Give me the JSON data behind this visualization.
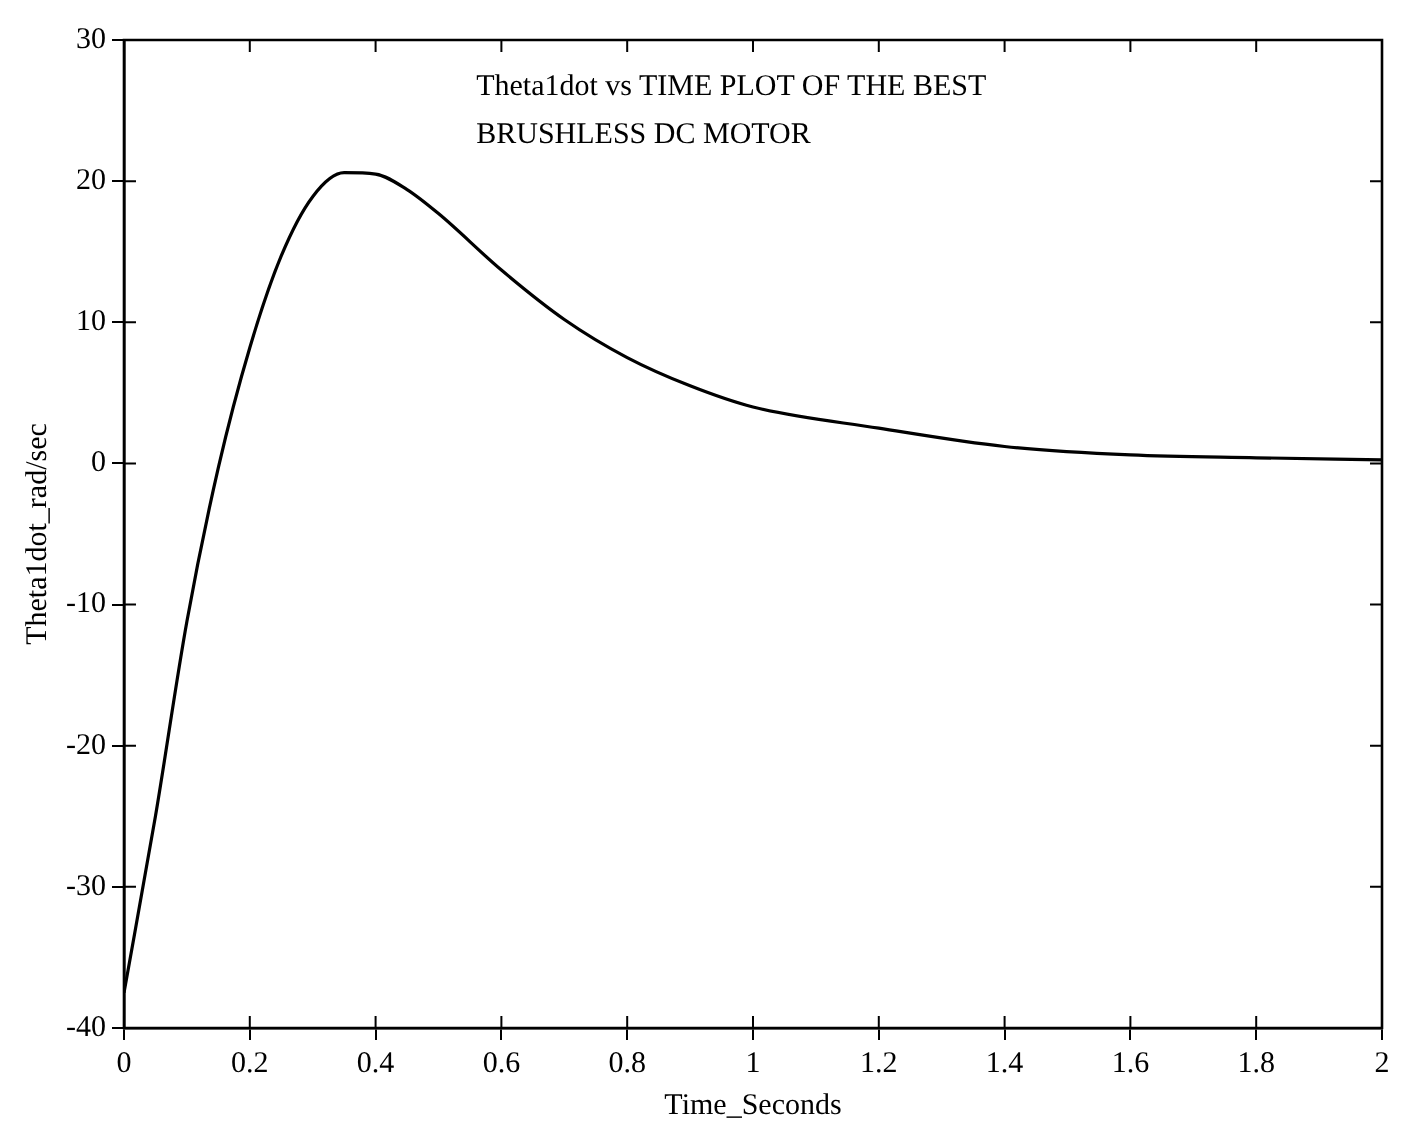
{
  "chart_data": {
    "type": "line",
    "title": "Theta1dot vs TIME PLOT OF THE BEST",
    "subtitle": "BRUSHLESS DC MOTOR",
    "xlabel": "Time_Seconds",
    "ylabel": "Theta1dot_rad/sec",
    "x": [
      0,
      0.05,
      0.1,
      0.15,
      0.2,
      0.25,
      0.3,
      0.35,
      0.4,
      0.45,
      0.5,
      0.6,
      0.7,
      0.8,
      0.9,
      1,
      1.2,
      1.4,
      1.6,
      1.8,
      2
    ],
    "series": [
      {
        "color": "#000000",
        "values": [
          -37.5,
          -25,
          -11.2,
          -0.3,
          8.2,
          14.7,
          18.9,
          20.6,
          20.5,
          19.4,
          17.7,
          13.7,
          10.2,
          7.5,
          5.5,
          4.0,
          2.5,
          1.2,
          0.6,
          0.4,
          0.25
        ]
      }
    ],
    "xlim": [
      0,
      2
    ],
    "xticks": [
      0,
      0.2,
      0.4,
      0.6,
      0.8,
      1,
      1.2,
      1.4,
      1.6,
      1.8,
      2
    ],
    "ylim": [
      -40,
      30
    ],
    "yticks": [
      -40,
      -30,
      -20,
      -10,
      0,
      10,
      20,
      30
    ],
    "grid": false,
    "legend": false,
    "marker": "none",
    "line_style": "solid"
  }
}
